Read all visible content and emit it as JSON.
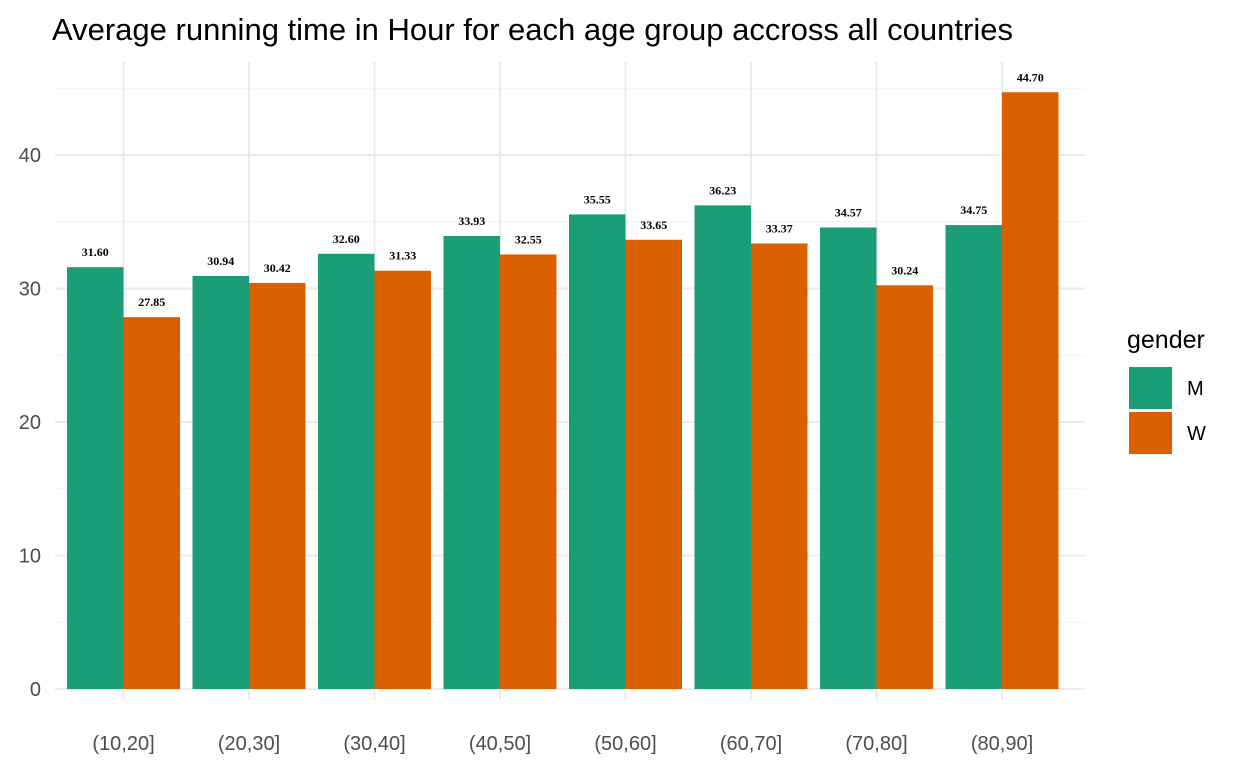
{
  "chart_data": {
    "type": "bar",
    "title": "Average running time in Hour for each age group accross all countries",
    "xlabel": "",
    "ylabel": "",
    "categories": [
      "(10,20]",
      "(20,30]",
      "(30,40]",
      "(40,50]",
      "(50,60]",
      "(60,70]",
      "(70,80]",
      "(80,90]"
    ],
    "series": [
      {
        "name": "M",
        "color": "#1b9e77",
        "values": [
          31.6,
          30.94,
          32.6,
          33.93,
          35.55,
          36.23,
          34.57,
          34.75
        ],
        "labels": [
          "31.60",
          "30.94",
          "32.60",
          "33.93",
          "35.55",
          "36.23",
          "34.57",
          "34.75"
        ]
      },
      {
        "name": "W",
        "color": "#d95f02",
        "values": [
          27.85,
          30.42,
          31.33,
          32.55,
          33.65,
          33.37,
          30.24,
          44.7
        ],
        "labels": [
          "27.85",
          "30.42",
          "31.33",
          "32.55",
          "33.65",
          "33.37",
          "30.24",
          "44.70"
        ]
      }
    ],
    "y_ticks": [
      "0",
      "10",
      "20",
      "30",
      "40"
    ],
    "ylim": [
      0,
      45
    ],
    "grid": true,
    "legend": {
      "title": "gender",
      "position": "right"
    }
  }
}
